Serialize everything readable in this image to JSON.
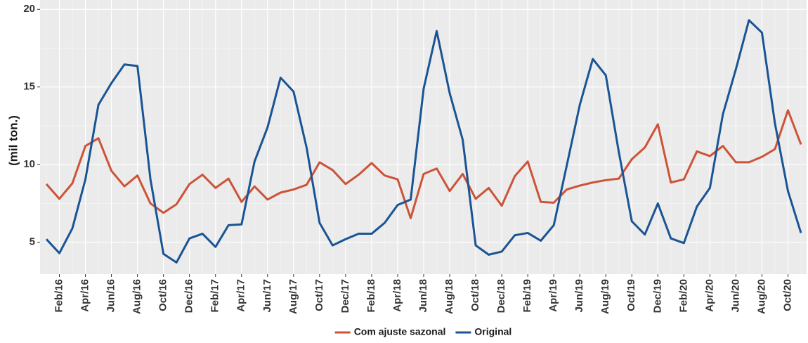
{
  "chart_data": {
    "type": "line",
    "ylabel": "(mil ton.)",
    "categories": [
      null,
      "Feb/16",
      null,
      "Apr/16",
      null,
      "Jun/16",
      null,
      "Aug/16",
      null,
      "Oct/16",
      null,
      "Dec/16",
      null,
      "Feb/17",
      null,
      "Apr/17",
      null,
      "Jun/17",
      null,
      "Aug/17",
      null,
      "Oct/17",
      null,
      "Dec/17",
      null,
      "Feb/18",
      null,
      "Apr/18",
      null,
      "Jun/18",
      null,
      "Aug/18",
      null,
      "Oct/18",
      null,
      "Dec/18",
      null,
      "Feb/19",
      null,
      "Apr/19",
      null,
      "Jun/19",
      null,
      "Aug/19",
      null,
      "Oct/19",
      null,
      "Dec/19",
      null,
      "Feb/20",
      null,
      "Apr/20",
      null,
      "Jun/20",
      null,
      "Aug/20",
      null,
      "Oct/20",
      null
    ],
    "series": [
      {
        "name": "Com ajuste sazonal",
        "color": "#cd5338",
        "values": [
          8.75,
          7.8,
          8.8,
          11.2,
          11.7,
          9.6,
          8.6,
          9.3,
          7.5,
          6.9,
          7.45,
          8.75,
          9.35,
          8.5,
          9.1,
          7.6,
          8.6,
          7.75,
          8.2,
          8.4,
          8.7,
          10.15,
          9.65,
          8.75,
          9.35,
          10.1,
          9.3,
          9.05,
          6.55,
          9.4,
          9.75,
          8.3,
          9.4,
          7.8,
          8.5,
          7.35,
          9.25,
          10.2,
          7.6,
          7.55,
          8.4,
          8.65,
          8.85,
          9.0,
          9.1,
          10.35,
          11.1,
          12.6,
          8.85,
          9.05,
          10.85,
          10.55,
          11.2,
          10.15,
          10.15,
          10.5,
          11.0,
          13.5,
          11.3
        ]
      },
      {
        "name": "Original",
        "color": "#1a5494",
        "values": [
          5.2,
          4.3,
          5.9,
          9.05,
          13.85,
          15.25,
          16.45,
          16.35,
          9.05,
          4.25,
          3.7,
          5.25,
          5.55,
          4.7,
          6.1,
          6.15,
          10.2,
          12.4,
          15.6,
          14.7,
          11.1,
          6.25,
          4.8,
          5.2,
          5.55,
          5.55,
          6.25,
          7.4,
          7.75,
          14.9,
          18.6,
          14.6,
          11.6,
          4.8,
          4.2,
          4.4,
          5.45,
          5.6,
          5.1,
          6.1,
          9.95,
          13.85,
          16.8,
          15.75,
          10.8,
          6.35,
          5.5,
          7.5,
          5.25,
          4.95,
          7.3,
          8.5,
          13.25,
          16.15,
          19.3,
          18.5,
          12.65,
          8.3,
          5.6
        ]
      }
    ],
    "ylim": [
      2.95,
      20.6
    ],
    "yticks": [
      5,
      10,
      15,
      20
    ],
    "grid": true,
    "legend": "bottom"
  }
}
